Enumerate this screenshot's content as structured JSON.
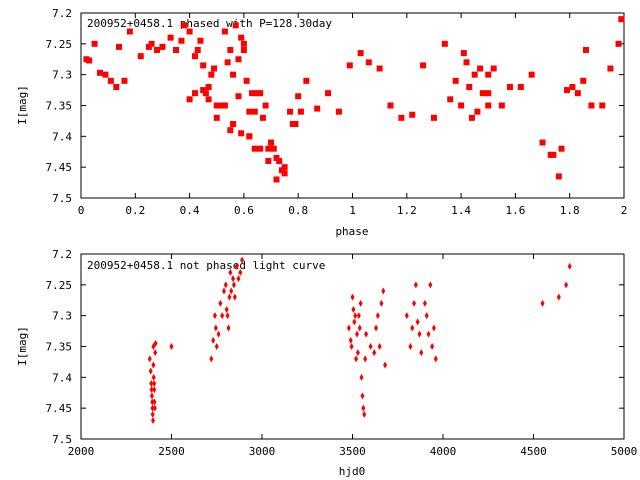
{
  "chart_data": [
    {
      "type": "scatter",
      "title": "200952+0458.1 phased with P=128.30day",
      "xlabel": "phase",
      "ylabel": "I[mag]",
      "xlim": [
        0,
        2
      ],
      "ylim": [
        7.5,
        7.2
      ],
      "y_inverted": true,
      "xticks": [
        "0",
        "0.2",
        "0.4",
        "0.6",
        "0.8",
        "1",
        "1.2",
        "1.4",
        "1.6",
        "1.8",
        "2"
      ],
      "yticks": [
        "7.2",
        "7.25",
        "7.3",
        "7.35",
        "7.4",
        "7.45",
        "7.5"
      ],
      "grid": false,
      "marker_color": "#ff0000",
      "marker": "square",
      "x": [
        0.02,
        0.03,
        0.05,
        0.07,
        0.09,
        0.11,
        0.13,
        0.14,
        0.16,
        0.18,
        0.22,
        0.25,
        0.26,
        0.28,
        0.3,
        0.33,
        0.35,
        0.37,
        0.38,
        0.4,
        0.42,
        0.43,
        0.44,
        0.45,
        0.46,
        0.47,
        0.48,
        0.49,
        0.5,
        0.52,
        0.53,
        0.54,
        0.55,
        0.56,
        0.57,
        0.58,
        0.59,
        0.6,
        0.61,
        0.62,
        0.63,
        0.64,
        0.65,
        0.66,
        0.67,
        0.68,
        0.69,
        0.7,
        0.71,
        0.72,
        0.73,
        0.74,
        0.75,
        0.77,
        0.79,
        0.81,
        0.83,
        0.87,
        0.91,
        0.95,
        0.99,
        1.03,
        1.06,
        1.1,
        1.14,
        1.18,
        1.22,
        1.26,
        1.3,
        1.34,
        1.36,
        1.38,
        1.4,
        1.42,
        1.44,
        1.46,
        1.48,
        1.5,
        1.5,
        1.5,
        1.52,
        1.55,
        1.58,
        1.62,
        1.66,
        1.7,
        1.73,
        1.77,
        1.81,
        1.85,
        1.88,
        1.92,
        1.95,
        1.98,
        1.99,
        0.4,
        0.42,
        0.45,
        0.47,
        0.5,
        0.53,
        0.56,
        0.59,
        0.62,
        0.66,
        0.69,
        0.72,
        0.75,
        0.78,
        0.8,
        0.58,
        0.6,
        0.62,
        0.64,
        0.55,
        0.51,
        1.41,
        1.45,
        1.47,
        1.43,
        1.74,
        1.76,
        1.79,
        1.83,
        1.86
      ],
      "y": [
        7.275,
        7.277,
        7.25,
        7.297,
        7.3,
        7.31,
        7.32,
        7.255,
        7.31,
        7.23,
        7.27,
        7.255,
        7.25,
        7.26,
        7.255,
        7.24,
        7.26,
        7.245,
        7.22,
        7.23,
        7.27,
        7.26,
        7.245,
        7.285,
        7.33,
        7.32,
        7.3,
        7.29,
        7.37,
        7.35,
        7.23,
        7.28,
        7.26,
        7.3,
        7.22,
        7.335,
        7.24,
        7.25,
        7.31,
        7.36,
        7.33,
        7.36,
        7.33,
        7.33,
        7.37,
        7.35,
        7.42,
        7.41,
        7.42,
        7.435,
        7.44,
        7.455,
        7.46,
        7.36,
        7.38,
        7.36,
        7.31,
        7.355,
        7.33,
        7.36,
        7.285,
        7.265,
        7.28,
        7.29,
        7.35,
        7.37,
        7.365,
        7.285,
        7.37,
        7.25,
        7.34,
        7.31,
        7.35,
        7.28,
        7.37,
        7.36,
        7.33,
        7.3,
        7.33,
        7.35,
        7.29,
        7.35,
        7.32,
        7.32,
        7.3,
        7.41,
        7.43,
        7.42,
        7.32,
        7.31,
        7.35,
        7.35,
        7.29,
        7.25,
        7.21,
        7.34,
        7.33,
        7.325,
        7.34,
        7.35,
        7.35,
        7.38,
        7.395,
        7.4,
        7.42,
        7.44,
        7.47,
        7.45,
        7.38,
        7.335,
        7.275,
        7.26,
        7.4,
        7.42,
        7.39,
        7.35,
        7.265,
        7.3,
        7.29,
        7.32,
        7.43,
        7.465,
        7.325,
        7.33,
        7.26
      ]
    },
    {
      "type": "scatter",
      "title": "200952+0458.1 not phased light curve",
      "xlabel": "hjd0",
      "ylabel": "I[mag]",
      "xlim": [
        2000,
        5000
      ],
      "ylim": [
        7.5,
        7.2
      ],
      "y_inverted": true,
      "xticks": [
        "2000",
        "2500",
        "3000",
        "3500",
        "4000",
        "4500",
        "5000"
      ],
      "yticks": [
        "7.2",
        "7.25",
        "7.3",
        "7.35",
        "7.4",
        "7.45",
        "7.5"
      ],
      "grid": false,
      "marker_color": "#ff0000",
      "marker": "diamond",
      "x": [
        2380,
        2385,
        2388,
        2390,
        2392,
        2394,
        2395,
        2396,
        2398,
        2400,
        2400,
        2402,
        2404,
        2405,
        2406,
        2408,
        2410,
        2412,
        2500,
        2720,
        2730,
        2740,
        2745,
        2750,
        2760,
        2770,
        2780,
        2790,
        2800,
        2805,
        2810,
        2815,
        2820,
        2825,
        2830,
        2840,
        2845,
        2850,
        2860,
        2870,
        2880,
        2890,
        3480,
        3490,
        3495,
        3500,
        3505,
        3510,
        3515,
        3520,
        3525,
        3530,
        3535,
        3540,
        3545,
        3550,
        3555,
        3560,
        3565,
        3570,
        3575,
        3600,
        3620,
        3630,
        3640,
        3650,
        3660,
        3670,
        3680,
        3800,
        3820,
        3830,
        3840,
        3850,
        3860,
        3870,
        3880,
        3900,
        3910,
        3920,
        3930,
        3940,
        3950,
        3960,
        4550,
        4640,
        4680,
        4700
      ],
      "y": [
        7.37,
        7.39,
        7.41,
        7.42,
        7.43,
        7.44,
        7.45,
        7.46,
        7.47,
        7.35,
        7.38,
        7.4,
        7.41,
        7.42,
        7.44,
        7.45,
        7.36,
        7.345,
        7.35,
        7.37,
        7.34,
        7.3,
        7.32,
        7.35,
        7.33,
        7.28,
        7.3,
        7.26,
        7.25,
        7.29,
        7.3,
        7.32,
        7.27,
        7.23,
        7.26,
        7.24,
        7.25,
        7.27,
        7.22,
        7.24,
        7.23,
        7.21,
        7.32,
        7.34,
        7.35,
        7.27,
        7.29,
        7.31,
        7.3,
        7.37,
        7.33,
        7.36,
        7.3,
        7.32,
        7.28,
        7.4,
        7.43,
        7.45,
        7.46,
        7.37,
        7.33,
        7.35,
        7.36,
        7.32,
        7.3,
        7.35,
        7.28,
        7.26,
        7.38,
        7.3,
        7.35,
        7.32,
        7.28,
        7.25,
        7.31,
        7.33,
        7.36,
        7.28,
        7.3,
        7.33,
        7.25,
        7.35,
        7.32,
        7.37,
        7.28,
        7.27,
        7.25,
        7.22
      ]
    }
  ]
}
